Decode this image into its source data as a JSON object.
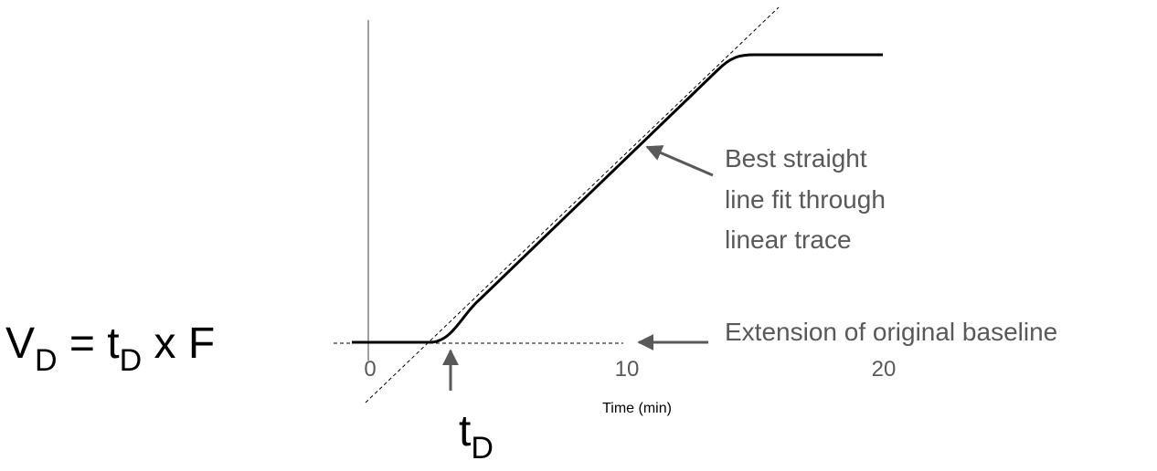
{
  "equation": {
    "parts": [
      "V",
      "D",
      " = t",
      "D",
      " x F"
    ]
  },
  "axis": {
    "label": "Time (min)",
    "ticks": [
      0,
      10,
      20
    ]
  },
  "annotations": {
    "fit_line": [
      "Best straight",
      "line fit through",
      "linear trace"
    ],
    "baseline": "Extension of original baseline",
    "marker": [
      "t",
      "D"
    ]
  }
}
